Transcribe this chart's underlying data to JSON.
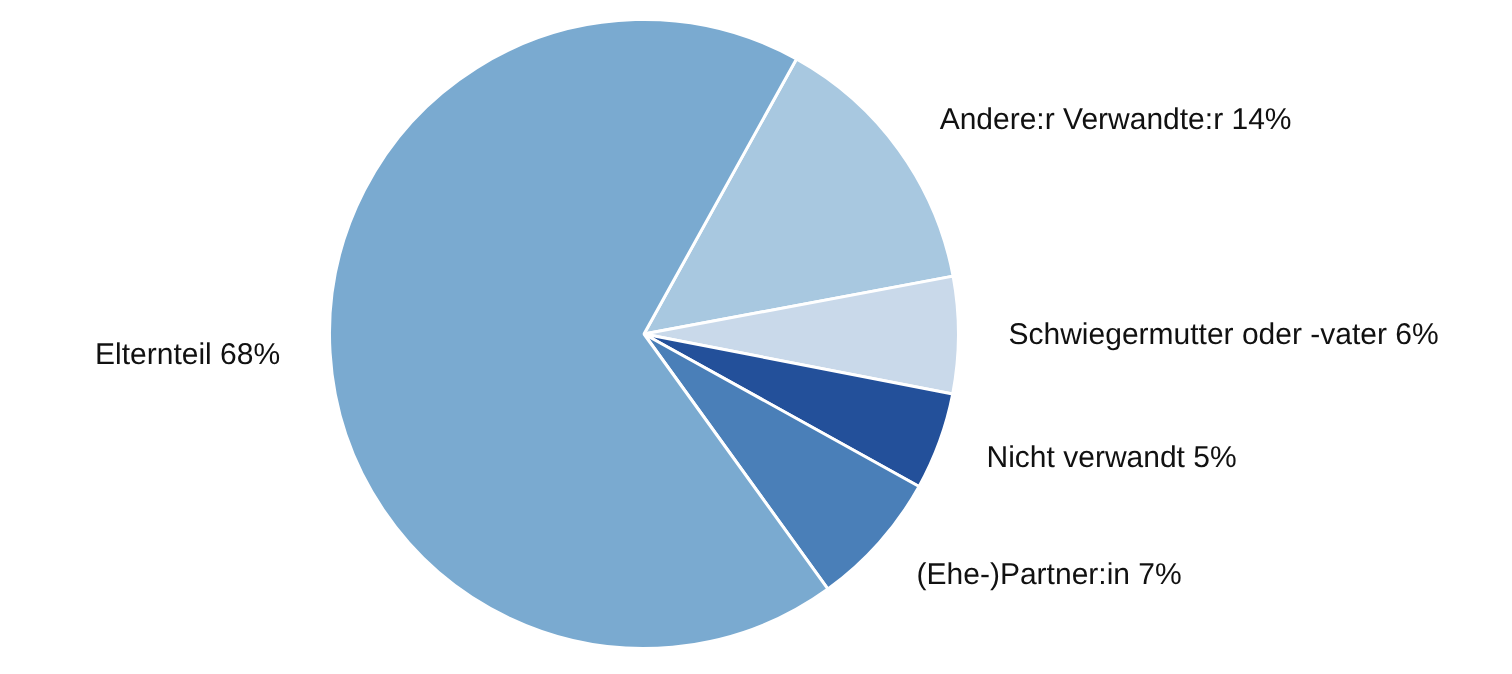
{
  "chart_data": {
    "type": "pie",
    "categories": [
      "Andere:r Verwandte:r",
      "Schwiegermutter oder -vater",
      "Nicht verwandt",
      "(Ehe-)Partner:in",
      "Elternteil"
    ],
    "values": [
      14,
      6,
      5,
      7,
      68
    ],
    "value_labels": [
      "14%",
      "6%",
      "5%",
      "7%",
      "68%"
    ],
    "colors": [
      "#a8c8e0",
      "#c9d9ea",
      "#23509a",
      "#4a7fb8",
      "#7aaad0"
    ],
    "legend": false
  }
}
